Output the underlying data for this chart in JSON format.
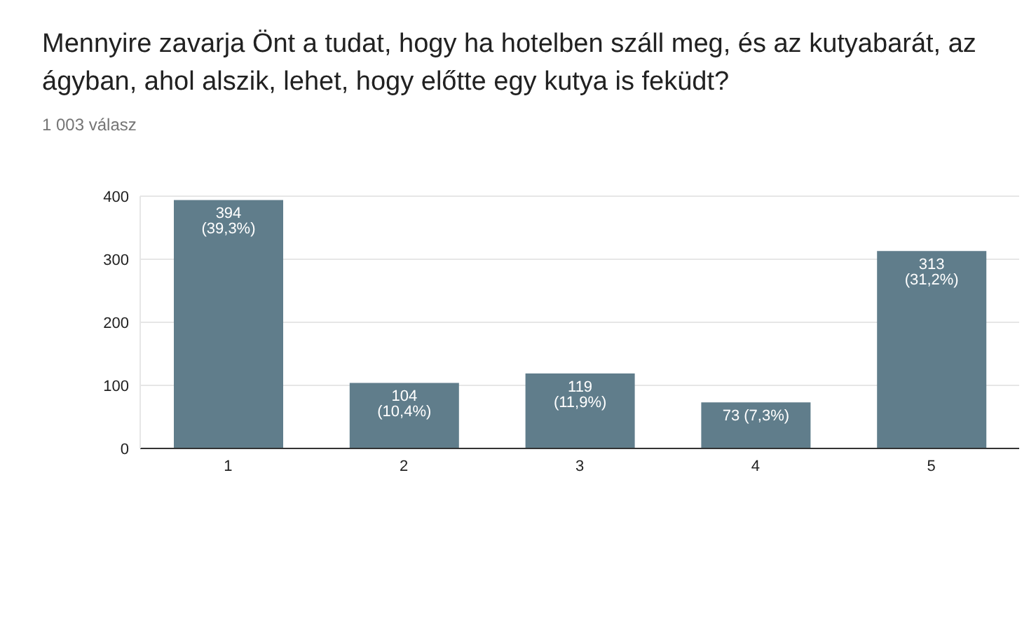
{
  "chart_data": {
    "type": "bar",
    "title": "Mennyire zavarja Önt a tudat, hogy ha hotelben száll meg, és az kutyabarát, az ágyban, ahol alszik, lehet, hogy előtte egy kutya is feküdt?",
    "subtitle": "1 003 válasz",
    "categories": [
      "1",
      "2",
      "3",
      "4",
      "5"
    ],
    "values": [
      394,
      104,
      119,
      73,
      313
    ],
    "value_labels": [
      "394 (39,3%)",
      "104 (10,4%)",
      "119 (11,9%)",
      "73 (7,3%)",
      "313 (31,2%)"
    ],
    "color": "#607d8b",
    "ylim": [
      0,
      400
    ],
    "yticks": [
      0,
      100,
      200,
      300,
      400
    ],
    "grid": "y"
  }
}
